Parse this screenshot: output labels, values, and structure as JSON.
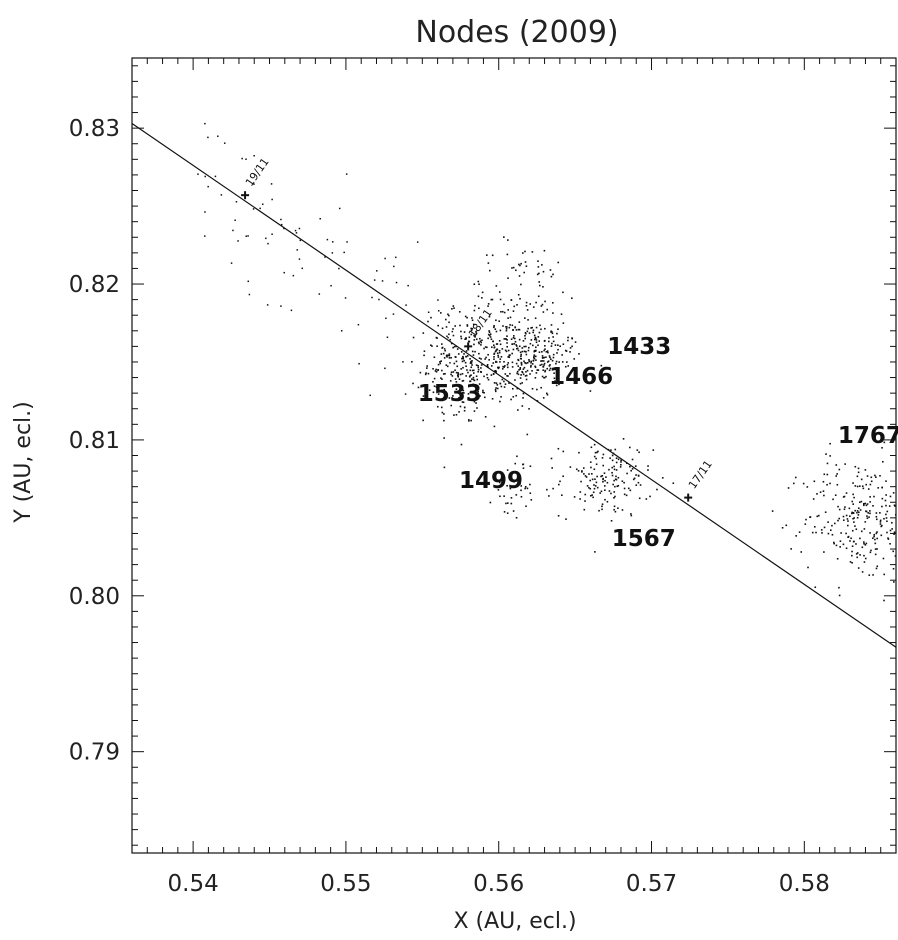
{
  "chart_data": {
    "type": "scatter",
    "title": "Nodes (2009)",
    "xlabel": "X (AU, ecl.)",
    "ylabel": "Y (AU, ecl.)",
    "xlim": [
      0.536,
      0.586
    ],
    "ylim": [
      0.7835,
      0.8345
    ],
    "x_ticks": [
      0.54,
      0.55,
      0.56,
      0.57,
      0.58
    ],
    "x_tick_labels": [
      "0.54",
      "0.55",
      "0.56",
      "0.57",
      "0.58"
    ],
    "y_ticks": [
      0.79,
      0.8,
      0.81,
      0.82,
      0.83
    ],
    "y_tick_labels": [
      "0.79",
      "0.80",
      "0.81",
      "0.82",
      "0.83"
    ],
    "grid": false,
    "earth_orbit": {
      "points": [
        [
          0.536,
          0.8303
        ],
        [
          0.586,
          0.7967
        ]
      ],
      "markers": [
        {
          "date": "19/11",
          "x": 0.5434,
          "y": 0.8257
        },
        {
          "date": "18/11",
          "x": 0.558,
          "y": 0.816
        },
        {
          "date": "17/11",
          "x": 0.5724,
          "y": 0.8063
        }
      ]
    },
    "streams": [
      {
        "name": "1433",
        "label_x": 0.5671,
        "label_y": 0.8155,
        "cx": 0.5625,
        "cy": 0.8154,
        "sx": 0.0015,
        "sy": 0.0008,
        "n": 110
      },
      {
        "name": "1466",
        "label_x": 0.5633,
        "label_y": 0.8136,
        "cx": 0.5598,
        "cy": 0.815,
        "sx": 0.0022,
        "sy": 0.0016,
        "n": 320
      },
      {
        "name": "1533",
        "label_x": 0.5547,
        "label_y": 0.8125,
        "cx": 0.5575,
        "cy": 0.8147,
        "sx": 0.0012,
        "sy": 0.0018,
        "n": 140
      },
      {
        "name": "1499",
        "label_x": 0.5574,
        "label_y": 0.8069,
        "cx": 0.561,
        "cy": 0.807,
        "sx": 0.0007,
        "sy": 0.001,
        "n": 40
      },
      {
        "name": "1567",
        "label_x": 0.5674,
        "label_y": 0.8032,
        "cx": 0.567,
        "cy": 0.8075,
        "sx": 0.0015,
        "sy": 0.0012,
        "n": 160
      },
      {
        "name": "1767",
        "label_x": 0.5822,
        "label_y": 0.8098,
        "cx": 0.5835,
        "cy": 0.805,
        "sx": 0.0018,
        "sy": 0.002,
        "n": 260
      },
      {
        "name": "",
        "label_x": null,
        "label_y": null,
        "cx": 0.5615,
        "cy": 0.8185,
        "sx": 0.002,
        "sy": 0.0022,
        "n": 140
      }
    ]
  }
}
